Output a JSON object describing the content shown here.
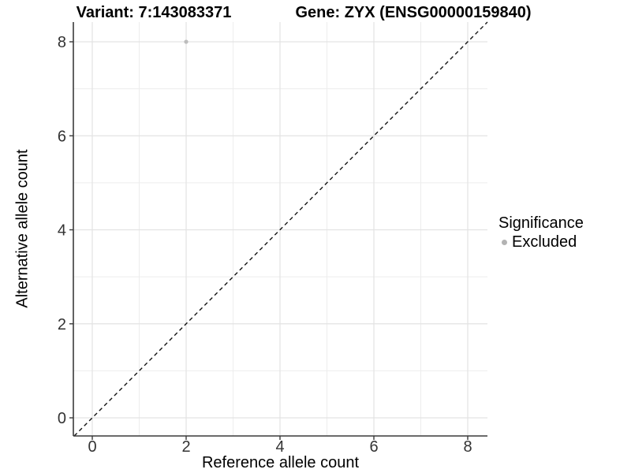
{
  "chart_data": {
    "type": "scatter",
    "title_left": "Variant: 7:143083371",
    "title_right": "Gene: ZYX (ENSG00000159840)",
    "xlabel": "Reference allele count",
    "ylabel": "Alternative allele count",
    "xlim": [
      -0.4,
      8.42
    ],
    "ylim": [
      -0.4,
      8.42
    ],
    "xticks": [
      0,
      2,
      4,
      6,
      8
    ],
    "yticks": [
      0,
      2,
      4,
      6,
      8
    ],
    "minor_gridlines": [
      1,
      3,
      5,
      7
    ],
    "grid": true,
    "points": [
      {
        "x": 2,
        "y": 8,
        "series": "Excluded"
      }
    ],
    "reference_line": {
      "type": "identity",
      "style": "dashed"
    },
    "legend": {
      "title": "Significance",
      "position": "right",
      "entries": [
        {
          "label": "Excluded",
          "color": "#b3b3b3"
        }
      ]
    },
    "colors": {
      "point": "#bdbdbd",
      "grid_major": "#e3e3e3",
      "grid_minor": "#ededed",
      "axis_line": "#3a3a3a",
      "tick_label": "#333333",
      "dashed_line": "#141414"
    }
  }
}
